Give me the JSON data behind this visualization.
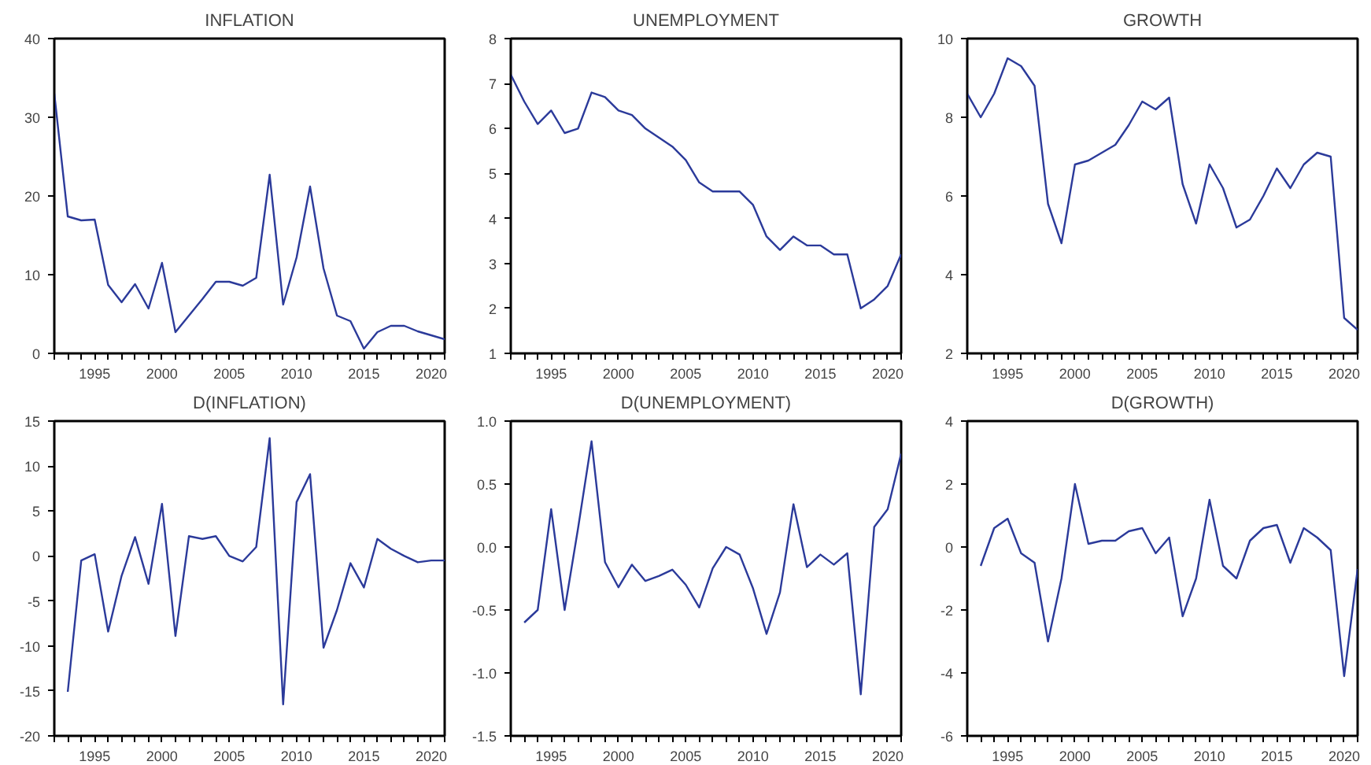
{
  "chart_data": [
    {
      "type": "line",
      "title": "INFLATION",
      "x": [
        1992,
        1993,
        1994,
        1995,
        1996,
        1997,
        1998,
        1999,
        2000,
        2001,
        2002,
        2003,
        2004,
        2005,
        2006,
        2007,
        2008,
        2009,
        2010,
        2011,
        2012,
        2013,
        2014,
        2015,
        2016,
        2017,
        2018,
        2019,
        2020,
        2021
      ],
      "series": [
        {
          "color": "#2b3a9a",
          "values": [
            33,
            17.4,
            16.9,
            17.0,
            8.7,
            6.5,
            8.8,
            5.7,
            11.5,
            2.7,
            4.8,
            6.9,
            9.1,
            9.1,
            8.6,
            9.6,
            22.7,
            6.2,
            12.2,
            21.2,
            10.8,
            4.8,
            4.1,
            0.6,
            2.7,
            3.5,
            3.5,
            2.8,
            2.3,
            1.8
          ]
        }
      ],
      "xlim": [
        1992,
        2021
      ],
      "ylim": [
        0,
        40
      ],
      "yticks": [
        0,
        10,
        20,
        30,
        40
      ],
      "xticks": [
        {
          "value": 1992,
          "label": null
        },
        {
          "value": 1993,
          "label": null
        },
        {
          "value": 1994,
          "label": null
        },
        1995,
        {
          "value": 1996,
          "label": null
        },
        {
          "value": 1997,
          "label": null
        },
        {
          "value": 1998,
          "label": null
        },
        {
          "value": 1999,
          "label": null
        },
        2000,
        {
          "value": 2001,
          "label": null
        },
        {
          "value": 2002,
          "label": null
        },
        {
          "value": 2003,
          "label": null
        },
        {
          "value": 2004,
          "label": null
        },
        2005,
        {
          "value": 2006,
          "label": null
        },
        {
          "value": 2007,
          "label": null
        },
        {
          "value": 2008,
          "label": null
        },
        {
          "value": 2009,
          "label": null
        },
        2010,
        {
          "value": 2011,
          "label": null
        },
        {
          "value": 2012,
          "label": null
        },
        {
          "value": 2013,
          "label": null
        },
        {
          "value": 2014,
          "label": null
        },
        2015,
        {
          "value": 2016,
          "label": null
        },
        {
          "value": 2017,
          "label": null
        },
        {
          "value": 2018,
          "label": null
        },
        {
          "value": 2019,
          "label": null
        },
        2020,
        {
          "value": 2021,
          "label": null
        }
      ],
      "grid": false
    },
    {
      "type": "line",
      "title": "UNEMPLOYMENT",
      "x": [
        1992,
        1993,
        1994,
        1995,
        1996,
        1997,
        1998,
        1999,
        2000,
        2001,
        2002,
        2003,
        2004,
        2005,
        2006,
        2007,
        2008,
        2009,
        2010,
        2011,
        2012,
        2013,
        2014,
        2015,
        2016,
        2017,
        2018,
        2019,
        2020,
        2021
      ],
      "series": [
        {
          "color": "#2b3a9a",
          "values": [
            7.2,
            6.6,
            6.1,
            6.4,
            5.9,
            6.0,
            6.8,
            6.7,
            6.4,
            6.3,
            6.0,
            5.8,
            5.6,
            5.3,
            4.8,
            4.6,
            4.6,
            4.6,
            4.3,
            3.6,
            3.3,
            3.6,
            3.4,
            3.4,
            3.2,
            3.2,
            2.0,
            2.2,
            2.5,
            3.2
          ]
        }
      ],
      "xlim": [
        1992,
        2021
      ],
      "ylim": [
        1,
        8
      ],
      "yticks": [
        1,
        2,
        3,
        4,
        5,
        6,
        7,
        8
      ],
      "xticks": [
        {
          "value": 1992,
          "label": null
        },
        {
          "value": 1993,
          "label": null
        },
        {
          "value": 1994,
          "label": null
        },
        1995,
        {
          "value": 1996,
          "label": null
        },
        {
          "value": 1997,
          "label": null
        },
        {
          "value": 1998,
          "label": null
        },
        {
          "value": 1999,
          "label": null
        },
        2000,
        {
          "value": 2001,
          "label": null
        },
        {
          "value": 2002,
          "label": null
        },
        {
          "value": 2003,
          "label": null
        },
        {
          "value": 2004,
          "label": null
        },
        2005,
        {
          "value": 2006,
          "label": null
        },
        {
          "value": 2007,
          "label": null
        },
        {
          "value": 2008,
          "label": null
        },
        {
          "value": 2009,
          "label": null
        },
        2010,
        {
          "value": 2011,
          "label": null
        },
        {
          "value": 2012,
          "label": null
        },
        {
          "value": 2013,
          "label": null
        },
        {
          "value": 2014,
          "label": null
        },
        2015,
        {
          "value": 2016,
          "label": null
        },
        {
          "value": 2017,
          "label": null
        },
        {
          "value": 2018,
          "label": null
        },
        {
          "value": 2019,
          "label": null
        },
        2020,
        {
          "value": 2021,
          "label": null
        }
      ],
      "grid": false
    },
    {
      "type": "line",
      "title": "GROWTH",
      "x": [
        1992,
        1993,
        1994,
        1995,
        1996,
        1997,
        1998,
        1999,
        2000,
        2001,
        2002,
        2003,
        2004,
        2005,
        2006,
        2007,
        2008,
        2009,
        2010,
        2011,
        2012,
        2013,
        2014,
        2015,
        2016,
        2017,
        2018,
        2019,
        2020,
        2021
      ],
      "series": [
        {
          "color": "#2b3a9a",
          "values": [
            8.6,
            8.0,
            8.6,
            9.5,
            9.3,
            8.8,
            5.8,
            4.8,
            6.8,
            6.9,
            7.1,
            7.3,
            7.8,
            8.4,
            8.2,
            8.5,
            6.3,
            5.3,
            6.8,
            6.2,
            5.2,
            5.4,
            6.0,
            6.7,
            6.2,
            6.8,
            7.1,
            7.0,
            2.9,
            2.6
          ]
        }
      ],
      "xlim": [
        1992,
        2021
      ],
      "ylim": [
        2,
        10
      ],
      "yticks": [
        2,
        4,
        6,
        8,
        10
      ],
      "xticks": [
        {
          "value": 1992,
          "label": null
        },
        {
          "value": 1993,
          "label": null
        },
        {
          "value": 1994,
          "label": null
        },
        1995,
        {
          "value": 1996,
          "label": null
        },
        {
          "value": 1997,
          "label": null
        },
        {
          "value": 1998,
          "label": null
        },
        {
          "value": 1999,
          "label": null
        },
        2000,
        {
          "value": 2001,
          "label": null
        },
        {
          "value": 2002,
          "label": null
        },
        {
          "value": 2003,
          "label": null
        },
        {
          "value": 2004,
          "label": null
        },
        2005,
        {
          "value": 2006,
          "label": null
        },
        {
          "value": 2007,
          "label": null
        },
        {
          "value": 2008,
          "label": null
        },
        {
          "value": 2009,
          "label": null
        },
        2010,
        {
          "value": 2011,
          "label": null
        },
        {
          "value": 2012,
          "label": null
        },
        {
          "value": 2013,
          "label": null
        },
        {
          "value": 2014,
          "label": null
        },
        2015,
        {
          "value": 2016,
          "label": null
        },
        {
          "value": 2017,
          "label": null
        },
        {
          "value": 2018,
          "label": null
        },
        {
          "value": 2019,
          "label": null
        },
        2020,
        {
          "value": 2021,
          "label": null
        }
      ],
      "grid": false
    },
    {
      "type": "line",
      "title": "D(INFLATION)",
      "x": [
        1993,
        1994,
        1995,
        1996,
        1997,
        1998,
        1999,
        2000,
        2001,
        2002,
        2003,
        2004,
        2005,
        2006,
        2007,
        2008,
        2009,
        2010,
        2011,
        2012,
        2013,
        2014,
        2015,
        2016,
        2017,
        2018,
        2019,
        2020,
        2021
      ],
      "series": [
        {
          "color": "#2b3a9a",
          "values": [
            -15.1,
            -0.5,
            0.2,
            -8.4,
            -2.2,
            2.1,
            -3.1,
            5.8,
            -8.9,
            2.2,
            1.9,
            2.2,
            0,
            -0.6,
            1.0,
            13.1,
            -16.5,
            6.0,
            9.1,
            -10.2,
            -6.0,
            -0.8,
            -3.5,
            1.9,
            0.8,
            0,
            -0.7,
            -0.5,
            -0.5
          ]
        }
      ],
      "xlim": [
        1992,
        2021
      ],
      "ylim": [
        -20,
        15
      ],
      "yticks": [
        -20,
        -15,
        -10,
        -5,
        0,
        5,
        10,
        15
      ],
      "xticks": [
        {
          "value": 1992,
          "label": null
        },
        {
          "value": 1993,
          "label": null
        },
        {
          "value": 1994,
          "label": null
        },
        1995,
        {
          "value": 1996,
          "label": null
        },
        {
          "value": 1997,
          "label": null
        },
        {
          "value": 1998,
          "label": null
        },
        {
          "value": 1999,
          "label": null
        },
        2000,
        {
          "value": 2001,
          "label": null
        },
        {
          "value": 2002,
          "label": null
        },
        {
          "value": 2003,
          "label": null
        },
        {
          "value": 2004,
          "label": null
        },
        2005,
        {
          "value": 2006,
          "label": null
        },
        {
          "value": 2007,
          "label": null
        },
        {
          "value": 2008,
          "label": null
        },
        {
          "value": 2009,
          "label": null
        },
        2010,
        {
          "value": 2011,
          "label": null
        },
        {
          "value": 2012,
          "label": null
        },
        {
          "value": 2013,
          "label": null
        },
        {
          "value": 2014,
          "label": null
        },
        2015,
        {
          "value": 2016,
          "label": null
        },
        {
          "value": 2017,
          "label": null
        },
        {
          "value": 2018,
          "label": null
        },
        {
          "value": 2019,
          "label": null
        },
        2020,
        {
          "value": 2021,
          "label": null
        }
      ],
      "grid": false
    },
    {
      "type": "line",
      "title": "D(UNEMPLOYMENT)",
      "x": [
        1993,
        1994,
        1995,
        1996,
        1997,
        1998,
        1999,
        2000,
        2001,
        2002,
        2003,
        2004,
        2005,
        2006,
        2007,
        2008,
        2009,
        2010,
        2011,
        2012,
        2013,
        2014,
        2015,
        2016,
        2017,
        2018,
        2019,
        2020,
        2021
      ],
      "series": [
        {
          "color": "#2b3a9a",
          "values": [
            -0.6,
            -0.5,
            0.3,
            -0.5,
            0.15,
            0.84,
            -0.12,
            -0.32,
            -0.14,
            -0.27,
            -0.23,
            -0.18,
            -0.3,
            -0.48,
            -0.17,
            0.0,
            -0.06,
            -0.33,
            -0.69,
            -0.36,
            0.34,
            -0.16,
            -0.06,
            -0.14,
            -0.05,
            -1.17,
            0.16,
            0.3,
            0.74
          ]
        }
      ],
      "xlim": [
        1992,
        2021
      ],
      "ylim": [
        -1.5,
        1.0
      ],
      "yticks": [
        -1.5,
        {
          "value": -1.0,
          "label": "-1.0"
        },
        -0.5,
        {
          "value": 0,
          "label": "0.0"
        },
        0.5,
        {
          "value": 1.0,
          "label": "1.0"
        }
      ],
      "xticks": [
        {
          "value": 1992,
          "label": null
        },
        {
          "value": 1993,
          "label": null
        },
        {
          "value": 1994,
          "label": null
        },
        1995,
        {
          "value": 1996,
          "label": null
        },
        {
          "value": 1997,
          "label": null
        },
        {
          "value": 1998,
          "label": null
        },
        {
          "value": 1999,
          "label": null
        },
        2000,
        {
          "value": 2001,
          "label": null
        },
        {
          "value": 2002,
          "label": null
        },
        {
          "value": 2003,
          "label": null
        },
        {
          "value": 2004,
          "label": null
        },
        2005,
        {
          "value": 2006,
          "label": null
        },
        {
          "value": 2007,
          "label": null
        },
        {
          "value": 2008,
          "label": null
        },
        {
          "value": 2009,
          "label": null
        },
        2010,
        {
          "value": 2011,
          "label": null
        },
        {
          "value": 2012,
          "label": null
        },
        {
          "value": 2013,
          "label": null
        },
        {
          "value": 2014,
          "label": null
        },
        2015,
        {
          "value": 2016,
          "label": null
        },
        {
          "value": 2017,
          "label": null
        },
        {
          "value": 2018,
          "label": null
        },
        {
          "value": 2019,
          "label": null
        },
        2020,
        {
          "value": 2021,
          "label": null
        }
      ],
      "grid": false
    },
    {
      "type": "line",
      "title": "D(GROWTH)",
      "x": [
        1993,
        1994,
        1995,
        1996,
        1997,
        1998,
        1999,
        2000,
        2001,
        2002,
        2003,
        2004,
        2005,
        2006,
        2007,
        2008,
        2009,
        2010,
        2011,
        2012,
        2013,
        2014,
        2015,
        2016,
        2017,
        2018,
        2019,
        2020,
        2021
      ],
      "series": [
        {
          "color": "#2b3a9a",
          "values": [
            -0.6,
            0.6,
            0.9,
            -0.2,
            -0.5,
            -3.0,
            -1.0,
            2.0,
            0.1,
            0.2,
            0.2,
            0.5,
            0.6,
            -0.2,
            0.3,
            -2.2,
            -1.0,
            1.5,
            -0.6,
            -1.0,
            0.2,
            0.6,
            0.7,
            -0.5,
            0.6,
            0.3,
            -0.1,
            -4.1,
            -0.7
          ]
        }
      ],
      "xlim": [
        1992,
        2021
      ],
      "ylim": [
        -6,
        4
      ],
      "yticks": [
        -6,
        -4,
        -2,
        0,
        2,
        4
      ],
      "xticks": [
        {
          "value": 1992,
          "label": null
        },
        {
          "value": 1993,
          "label": null
        },
        {
          "value": 1994,
          "label": null
        },
        1995,
        {
          "value": 1996,
          "label": null
        },
        {
          "value": 1997,
          "label": null
        },
        {
          "value": 1998,
          "label": null
        },
        {
          "value": 1999,
          "label": null
        },
        2000,
        {
          "value": 2001,
          "label": null
        },
        {
          "value": 2002,
          "label": null
        },
        {
          "value": 2003,
          "label": null
        },
        {
          "value": 2004,
          "label": null
        },
        2005,
        {
          "value": 2006,
          "label": null
        },
        {
          "value": 2007,
          "label": null
        },
        {
          "value": 2008,
          "label": null
        },
        {
          "value": 2009,
          "label": null
        },
        2010,
        {
          "value": 2011,
          "label": null
        },
        {
          "value": 2012,
          "label": null
        },
        {
          "value": 2013,
          "label": null
        },
        {
          "value": 2014,
          "label": null
        },
        2015,
        {
          "value": 2016,
          "label": null
        },
        {
          "value": 2017,
          "label": null
        },
        {
          "value": 2018,
          "label": null
        },
        {
          "value": 2019,
          "label": null
        },
        2020,
        {
          "value": 2021,
          "label": null
        }
      ],
      "grid": false
    }
  ]
}
